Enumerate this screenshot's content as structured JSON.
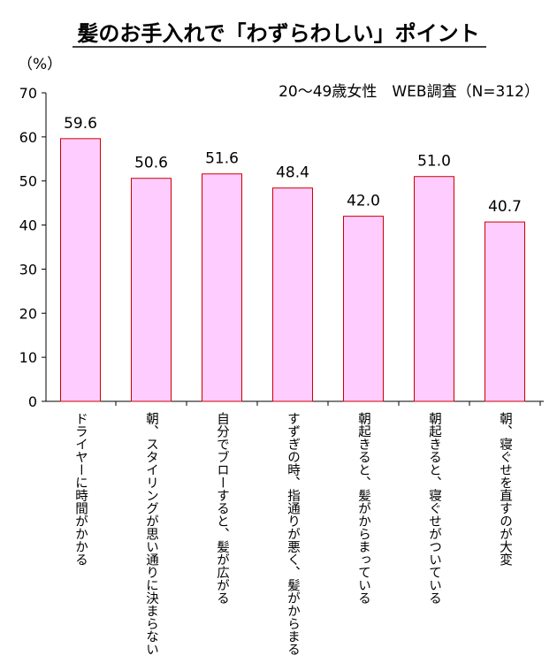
{
  "chart_data": {
    "type": "bar",
    "title": "髪のお手入れで「わずらわしい」ポイント",
    "subtitle": "20〜49歳女性　WEB調査（N=312）",
    "ylabel": "（%）",
    "xlabel": "",
    "ylim": [
      0,
      70
    ],
    "yticks": [
      0,
      10,
      20,
      30,
      40,
      50,
      60,
      70
    ],
    "categories": [
      "ドライヤーに時間がかかる",
      "朝、スタイリングが思い通りに決まらない",
      "自分でブローすると、髪が広がる",
      "すずぎの時、指通りが悪く、髪がからまる",
      "朝起きると、髪がからまっている",
      "朝起きると、寝ぐせがついている",
      "朝、寝ぐせを直すのが大変"
    ],
    "values": [
      59.6,
      50.6,
      51.6,
      48.4,
      42.0,
      51.0,
      40.7
    ],
    "value_labels": [
      "59.6",
      "50.6",
      "51.6",
      "48.4",
      "42.0",
      "51.0",
      "40.7"
    ],
    "bar_fill": "#ffccff",
    "bar_stroke": "#cc0000",
    "grid": false,
    "legend": "none"
  }
}
